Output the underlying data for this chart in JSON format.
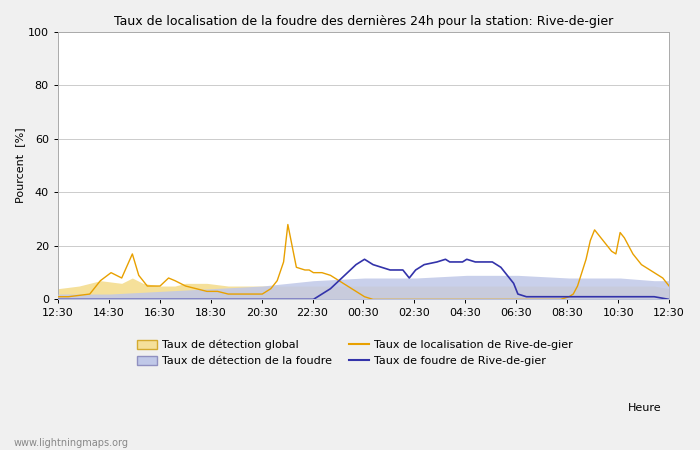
{
  "title": "Taux de localisation de la foudre des dernières 24h pour la station: Rive-de-gier",
  "ylabel": "Pourcent  [%]",
  "xlabel": "Heure",
  "watermark": "www.lightningmaps.org",
  "ylim": [
    0,
    100
  ],
  "yticks": [
    0,
    20,
    40,
    60,
    80,
    100
  ],
  "x_labels": [
    "12:30",
    "14:30",
    "16:30",
    "18:30",
    "20:30",
    "22:30",
    "00:30",
    "02:30",
    "04:30",
    "06:30",
    "08:30",
    "10:30",
    "12:30"
  ],
  "legend_items": [
    {
      "label": "Taux de détection global",
      "type": "fill",
      "facecolor": "#f5e09a",
      "edgecolor": "#d4aa30"
    },
    {
      "label": "Taux de localisation de Rive-de-gier",
      "type": "line",
      "color": "#e8a000"
    },
    {
      "label": "Taux de détection de la foudre",
      "type": "fill",
      "facecolor": "#c0c8e8",
      "edgecolor": "#9090c0"
    },
    {
      "label": "Taux de foudre de Rive-de-gier",
      "type": "line",
      "color": "#3333aa"
    }
  ],
  "bg_color": "#f0f0f0",
  "plot_bg": "#ffffff",
  "title_fontsize": 9,
  "axis_fontsize": 8,
  "watermark_fontsize": 7,
  "n_points": 288
}
